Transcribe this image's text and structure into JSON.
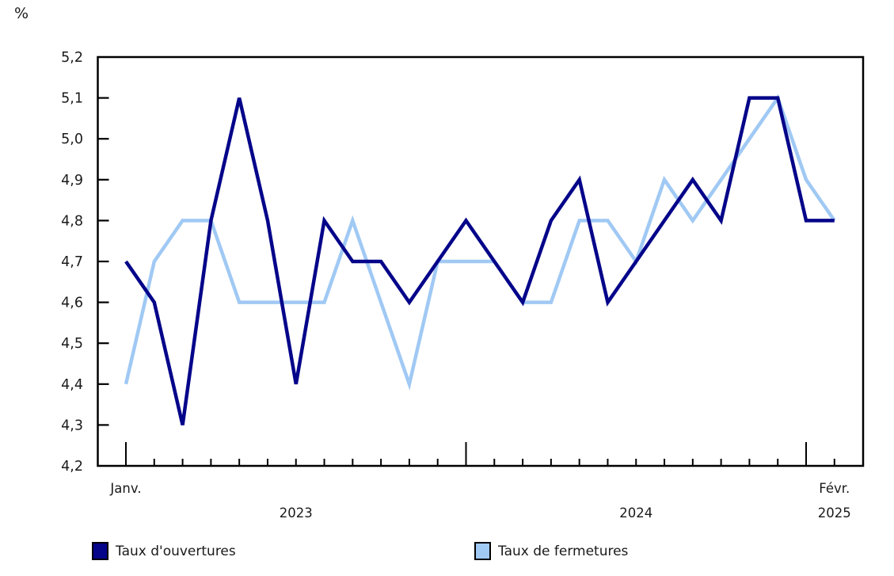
{
  "chart": {
    "unit_label": "%"
  },
  "chart_data": {
    "type": "line",
    "x": [
      "2023-01",
      "2023-02",
      "2023-03",
      "2023-04",
      "2023-05",
      "2023-06",
      "2023-07",
      "2023-08",
      "2023-09",
      "2023-10",
      "2023-11",
      "2023-12",
      "2024-01",
      "2024-02",
      "2024-03",
      "2024-04",
      "2024-05",
      "2024-06",
      "2024-07",
      "2024-08",
      "2024-09",
      "2024-10",
      "2024-11",
      "2024-12",
      "2025-01",
      "2025-02"
    ],
    "series": [
      {
        "name": "Taux d'ouvertures",
        "color": "#05058a",
        "values": [
          4.7,
          4.6,
          4.3,
          4.8,
          5.1,
          4.8,
          4.4,
          4.8,
          4.7,
          4.7,
          4.6,
          4.7,
          4.8,
          4.7,
          4.6,
          4.8,
          4.9,
          4.6,
          4.7,
          4.8,
          4.9,
          4.8,
          5.1,
          5.1,
          4.8,
          4.8
        ]
      },
      {
        "name": "Taux de fermetures",
        "color": "#a0c9f4",
        "values": [
          4.4,
          4.7,
          4.8,
          4.8,
          4.6,
          4.6,
          4.6,
          4.6,
          4.8,
          4.6,
          4.4,
          4.7,
          4.7,
          4.7,
          4.6,
          4.6,
          4.8,
          4.8,
          4.7,
          4.9,
          4.8,
          4.9,
          5.0,
          5.1,
          4.9,
          4.8
        ]
      }
    ],
    "title": "",
    "xlabel": "",
    "ylabel": "%",
    "grid": false,
    "legend_position": "bottom",
    "y_axis": {
      "min": 4.2,
      "max": 5.2,
      "tick_step": 0.1,
      "tick_labels": [
        "5,2",
        "5,1",
        "5,0",
        "4,9",
        "4,8",
        "4,7",
        "4,6",
        "4,5",
        "4,4",
        "4,3",
        "4,2"
      ]
    },
    "x_axis": {
      "first_tick_label": "Janv.",
      "last_tick_label": "Févr.",
      "major_tick_month_indices": [
        0,
        12,
        24
      ],
      "year_labels": [
        {
          "text": "2023",
          "month_index": 6
        },
        {
          "text": "2024",
          "month_index": 18
        },
        {
          "text": "2025",
          "month_index": 25
        }
      ]
    }
  }
}
